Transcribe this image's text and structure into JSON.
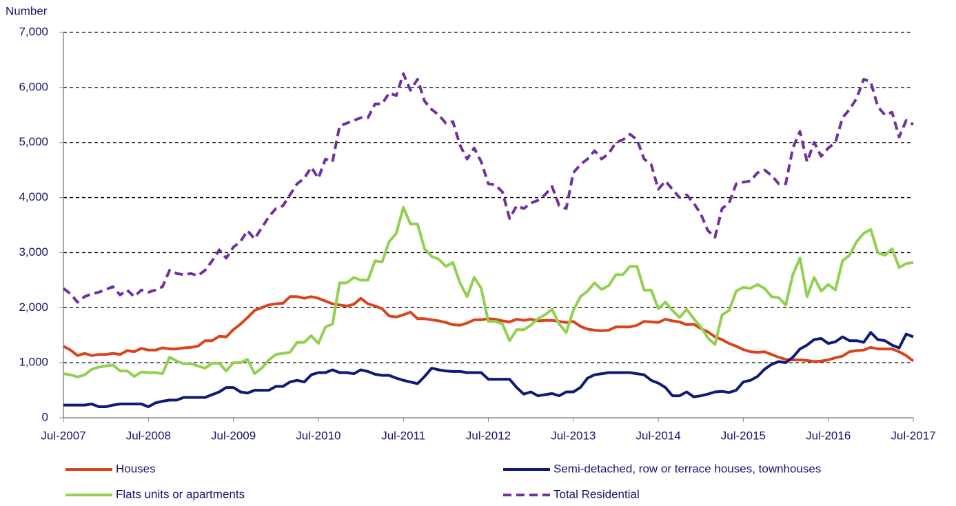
{
  "chart_data": {
    "type": "line",
    "y_label": "Number",
    "categories": [
      "Jul-2007",
      null,
      null,
      null,
      null,
      null,
      null,
      null,
      null,
      null,
      null,
      null,
      "Jul-2008",
      null,
      null,
      null,
      null,
      null,
      null,
      null,
      null,
      null,
      null,
      null,
      "Jul-2009",
      null,
      null,
      null,
      null,
      null,
      null,
      null,
      null,
      null,
      null,
      null,
      "Jul-2010",
      null,
      null,
      null,
      null,
      null,
      null,
      null,
      null,
      null,
      null,
      null,
      "Jul-2011",
      null,
      null,
      null,
      null,
      null,
      null,
      null,
      null,
      null,
      null,
      null,
      "Jul-2012",
      null,
      null,
      null,
      null,
      null,
      null,
      null,
      null,
      null,
      null,
      null,
      "Jul-2013",
      null,
      null,
      null,
      null,
      null,
      null,
      null,
      null,
      null,
      null,
      null,
      "Jul-2014",
      null,
      null,
      null,
      null,
      null,
      null,
      null,
      null,
      null,
      null,
      null,
      "Jul-2015",
      null,
      null,
      null,
      null,
      null,
      null,
      null,
      null,
      null,
      null,
      null,
      "Jul-2016",
      null,
      null,
      null,
      null,
      null,
      null,
      null,
      null,
      null,
      null,
      null,
      "Jul-2017"
    ],
    "series": [
      {
        "name": "Houses",
        "color": "#d9441c",
        "dash": false,
        "values": [
          1300,
          1230,
          1130,
          1170,
          1130,
          1150,
          1150,
          1170,
          1150,
          1220,
          1200,
          1260,
          1230,
          1230,
          1270,
          1250,
          1250,
          1270,
          1280,
          1300,
          1400,
          1400,
          1480,
          1470,
          1600,
          1700,
          1820,
          1950,
          2000,
          2050,
          2070,
          2080,
          2200,
          2200,
          2170,
          2200,
          2170,
          2120,
          2070,
          2050,
          2030,
          2060,
          2170,
          2070,
          2030,
          1980,
          1850,
          1830,
          1870,
          1920,
          1800,
          1800,
          1780,
          1760,
          1730,
          1690,
          1680,
          1720,
          1780,
          1780,
          1800,
          1790,
          1760,
          1740,
          1790,
          1770,
          1790,
          1760,
          1770,
          1770,
          1750,
          1730,
          1750,
          1660,
          1610,
          1590,
          1580,
          1590,
          1650,
          1650,
          1650,
          1680,
          1750,
          1740,
          1730,
          1790,
          1760,
          1740,
          1690,
          1700,
          1620,
          1560,
          1470,
          1420,
          1350,
          1300,
          1240,
          1200,
          1190,
          1200,
          1150,
          1100,
          1060,
          1050,
          1050,
          1040,
          1020,
          1030,
          1050,
          1090,
          1120,
          1200,
          1220,
          1230,
          1280,
          1250,
          1250,
          1250,
          1200,
          1130,
          1030
        ]
      },
      {
        "name": "Semi-detached, row or terrace houses, townhouses",
        "color": "#0d1a78",
        "dash": false,
        "values": [
          230,
          230,
          230,
          230,
          250,
          200,
          200,
          230,
          250,
          250,
          250,
          250,
          200,
          270,
          300,
          320,
          320,
          370,
          370,
          370,
          370,
          420,
          470,
          550,
          550,
          470,
          450,
          500,
          500,
          500,
          570,
          570,
          650,
          680,
          650,
          780,
          820,
          820,
          870,
          820,
          820,
          800,
          870,
          840,
          790,
          770,
          770,
          720,
          680,
          650,
          620,
          750,
          900,
          870,
          850,
          840,
          840,
          820,
          820,
          820,
          700,
          700,
          700,
          700,
          550,
          430,
          470,
          400,
          420,
          440,
          400,
          470,
          470,
          550,
          720,
          780,
          800,
          820,
          820,
          820,
          820,
          800,
          780,
          680,
          630,
          550,
          400,
          400,
          470,
          380,
          400,
          430,
          470,
          480,
          460,
          500,
          650,
          680,
          750,
          880,
          970,
          1020,
          1000,
          1100,
          1250,
          1320,
          1420,
          1440,
          1350,
          1380,
          1470,
          1400,
          1400,
          1370,
          1550,
          1420,
          1400,
          1320,
          1270,
          1520,
          1470
        ]
      },
      {
        "name": "Flats units or apartments",
        "color": "#92d050",
        "dash": false,
        "values": [
          800,
          780,
          740,
          780,
          880,
          920,
          940,
          960,
          850,
          850,
          750,
          830,
          820,
          820,
          800,
          1100,
          1030,
          980,
          980,
          940,
          900,
          990,
          990,
          850,
          1000,
          1000,
          1060,
          800,
          900,
          1050,
          1150,
          1170,
          1190,
          1370,
          1370,
          1490,
          1350,
          1650,
          1700,
          2450,
          2450,
          2550,
          2500,
          2500,
          2850,
          2830,
          3200,
          3350,
          3820,
          3520,
          3520,
          3070,
          2930,
          2880,
          2750,
          2820,
          2450,
          2200,
          2550,
          2350,
          1750,
          1750,
          1700,
          1400,
          1600,
          1600,
          1680,
          1800,
          1870,
          1970,
          1700,
          1550,
          1950,
          2200,
          2300,
          2450,
          2330,
          2400,
          2600,
          2600,
          2750,
          2750,
          2320,
          2320,
          1980,
          2100,
          1950,
          1820,
          1970,
          1800,
          1650,
          1450,
          1330,
          1870,
          1950,
          2300,
          2370,
          2350,
          2420,
          2350,
          2200,
          2180,
          2050,
          2600,
          2900,
          2200,
          2550,
          2300,
          2420,
          2320,
          2850,
          2950,
          3200,
          3350,
          3420,
          3000,
          2950,
          3070,
          2730,
          2800,
          2820
        ]
      },
      {
        "name": "Total Residential",
        "color": "#7030a0",
        "dash": true,
        "values": [
          2350,
          2250,
          2100,
          2200,
          2250,
          2280,
          2330,
          2380,
          2230,
          2320,
          2200,
          2320,
          2280,
          2320,
          2380,
          2680,
          2620,
          2600,
          2620,
          2580,
          2680,
          2850,
          3050,
          2900,
          3100,
          3200,
          3400,
          3250,
          3450,
          3650,
          3800,
          3850,
          4050,
          4250,
          4350,
          4550,
          4350,
          4700,
          4650,
          5300,
          5350,
          5400,
          5450,
          5450,
          5700,
          5700,
          5900,
          5850,
          6250,
          5950,
          6150,
          5750,
          5600,
          5500,
          5350,
          5380,
          4950,
          4700,
          4900,
          4650,
          4250,
          4230,
          4100,
          3620,
          3850,
          3800,
          3900,
          3950,
          4050,
          4200,
          3850,
          3800,
          4450,
          4600,
          4700,
          4850,
          4700,
          4800,
          5000,
          5050,
          5150,
          5050,
          4700,
          4600,
          4150,
          4300,
          4150,
          4000,
          4050,
          3900,
          3700,
          3400,
          3280,
          3800,
          3900,
          4250,
          4280,
          4300,
          4450,
          4500,
          4400,
          4250,
          4250,
          4900,
          5200,
          4650,
          5000,
          4750,
          4900,
          5000,
          5450,
          5600,
          5800,
          6150,
          6100,
          5650,
          5500,
          5550,
          5100,
          5400,
          5330
        ]
      }
    ],
    "ylim": [
      0,
      7000
    ],
    "yticks": [
      0,
      {
        "value": 1000,
        "label": "1,000"
      },
      {
        "value": 2000,
        "label": "2,000"
      },
      {
        "value": 3000,
        "label": "3,000"
      },
      {
        "value": 4000,
        "label": "4,000"
      },
      {
        "value": 5000,
        "label": "5,000"
      },
      {
        "value": 6000,
        "label": "6,000"
      },
      {
        "value": 7000,
        "label": "7,000"
      }
    ],
    "grid": true,
    "legend": "bottom"
  }
}
